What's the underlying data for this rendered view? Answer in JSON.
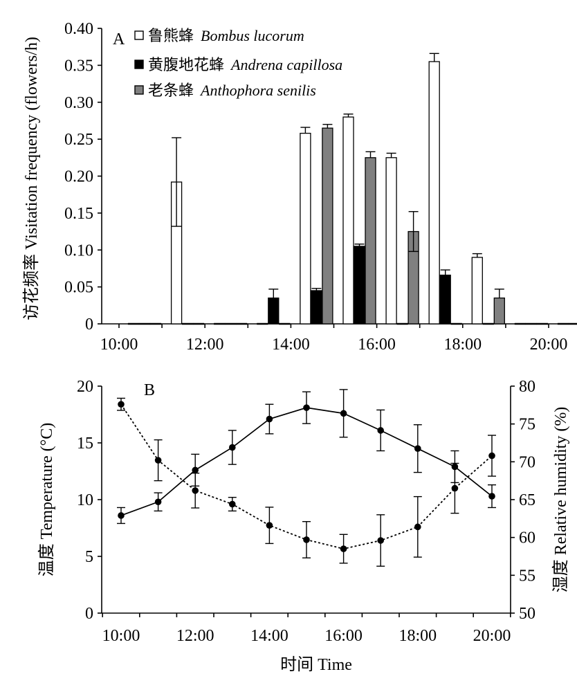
{
  "chart_data": [
    {
      "type": "bar",
      "panel_label": "A",
      "ylabel": "访花频率 Visitation frequency (flowers/h)",
      "xlabel": "",
      "ylim": [
        0,
        0.4
      ],
      "yticks": [
        "0",
        "0.05",
        "0.10",
        "0.15",
        "0.20",
        "0.25",
        "0.30",
        "0.35",
        "0.40"
      ],
      "xticks": [
        "10:00",
        "12:00",
        "14:00",
        "16:00",
        "18:00",
        "20:00"
      ],
      "categories": [
        "10:00",
        "11:00",
        "12:00",
        "13:00",
        "14:00",
        "15:00",
        "16:00",
        "17:00",
        "18:00",
        "19:00",
        "20:00"
      ],
      "legend_position": "top-left",
      "series": [
        {
          "name": "鲁熊蜂 Bombus lucorum",
          "name_cn": "鲁熊蜂",
          "name_latin": "Bombus lucorum",
          "color": "#ffffff",
          "values": [
            0,
            0.192,
            0,
            0,
            0.258,
            0.28,
            0.225,
            0.355,
            0.09,
            0,
            0
          ],
          "errors": [
            0,
            0.06,
            0,
            0,
            0.008,
            0.004,
            0.006,
            0.011,
            0.005,
            0,
            0
          ]
        },
        {
          "name": "黄腹地花蜂 Andrena capillosa",
          "name_cn": "黄腹地花蜂",
          "name_latin": "Andrena capillosa",
          "color": "#000000",
          "values": [
            0,
            0,
            0,
            0.035,
            0.045,
            0.105,
            0,
            0.066,
            0,
            0,
            0
          ],
          "errors": [
            0,
            0,
            0,
            0.012,
            0.003,
            0.003,
            0,
            0.007,
            0,
            0,
            0
          ]
        },
        {
          "name": "老条蜂 Anthophora senilis",
          "name_cn": "老条蜂",
          "name_latin": "Anthophora senilis",
          "color": "#808080",
          "values": [
            0,
            0,
            0,
            0,
            0.265,
            0.225,
            0.125,
            0,
            0.035,
            0,
            0
          ],
          "errors": [
            0,
            0,
            0,
            0,
            0.005,
            0.008,
            0.027,
            0,
            0.012,
            0,
            0
          ]
        }
      ]
    },
    {
      "type": "line",
      "panel_label": "B",
      "xlabel": "时间 Time",
      "ylabel_left": "温度 Temperature (°C)",
      "ylabel_right": "湿度 Relative humidity (%)",
      "ylim_left": [
        0,
        20
      ],
      "ylim_right": [
        50,
        80
      ],
      "yticks_left": [
        "0",
        "5",
        "10",
        "15",
        "20"
      ],
      "yticks_right": [
        "50",
        "55",
        "60",
        "65",
        "70",
        "75",
        "80"
      ],
      "xticks": [
        "10:00",
        "12:00",
        "14:00",
        "16:00",
        "18:00",
        "20:00"
      ],
      "x": [
        10,
        11,
        12,
        13,
        14,
        15,
        16,
        17,
        18,
        19,
        20
      ],
      "series": [
        {
          "name": "Temperature",
          "axis": "left",
          "style": "solid",
          "values": [
            8.6,
            9.8,
            12.6,
            14.6,
            17.1,
            18.1,
            17.6,
            16.1,
            14.5,
            12.9,
            10.3
          ],
          "errors": [
            0.7,
            0.8,
            1.4,
            1.5,
            1.3,
            1.4,
            2.1,
            1.8,
            2.1,
            1.4,
            1.0
          ]
        },
        {
          "name": "Relative humidity",
          "axis": "right",
          "style": "dotted",
          "values": [
            77.6,
            70.2,
            66.2,
            64.4,
            61.6,
            59.7,
            58.5,
            59.6,
            61.4,
            66.5,
            70.8
          ],
          "errors": [
            0.8,
            2.7,
            2.3,
            0.9,
            2.4,
            2.4,
            1.9,
            3.4,
            4.0,
            3.3,
            2.7
          ]
        }
      ]
    }
  ]
}
